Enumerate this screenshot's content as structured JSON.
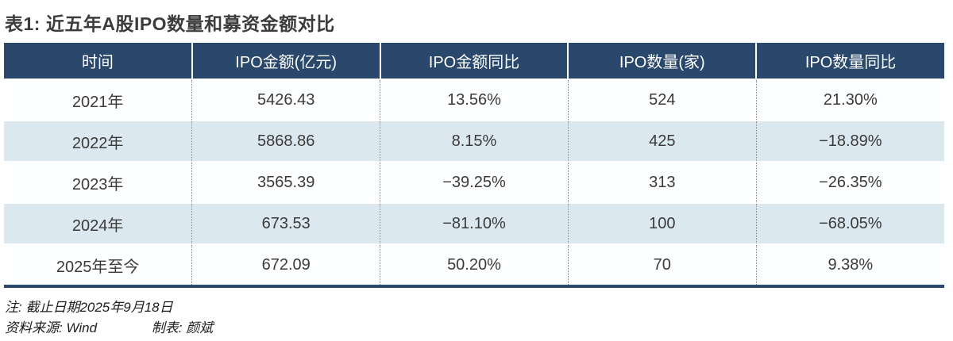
{
  "title": "表1: 近五年A股IPO数量和募资金额对比",
  "table": {
    "headers": [
      "时间",
      "IPO金额(亿元)",
      "IPO金额同比",
      "IPO数量(家)",
      "IPO数量同比"
    ],
    "rows": [
      [
        "2021年",
        "5426.43",
        "13.56%",
        "524",
        "21.30%"
      ],
      [
        "2022年",
        "5868.86",
        "8.15%",
        "425",
        "−18.89%"
      ],
      [
        "2023年",
        "3565.39",
        "−39.25%",
        "313",
        "−26.35%"
      ],
      [
        "2024年",
        "673.53",
        "−81.10%",
        "100",
        "−68.05%"
      ],
      [
        "2025年至今",
        "672.09",
        "50.20%",
        "70",
        "9.38%"
      ]
    ]
  },
  "notes": {
    "date_note": "注: 截止日期2025年9月18日",
    "source": "资料来源: Wind",
    "author": "制表: 颜斌"
  },
  "colors": {
    "header_bg": "#29486b",
    "stripe_bg": "#dce8ef",
    "bottom_border": "#29486b",
    "title_text": "#3c3c3c",
    "body_text": "#3a3a3a"
  },
  "chart_data": {
    "type": "table",
    "title": "表1: 近五年A股IPO数量和募资金额对比",
    "columns": [
      "时间",
      "IPO金额(亿元)",
      "IPO金额同比",
      "IPO数量(家)",
      "IPO数量同比"
    ],
    "rows": [
      [
        "2021年",
        5426.43,
        "13.56%",
        524,
        "21.30%"
      ],
      [
        "2022年",
        5868.86,
        "8.15%",
        425,
        "−18.89%"
      ],
      [
        "2023年",
        3565.39,
        "−39.25%",
        313,
        "−26.35%"
      ],
      [
        "2024年",
        673.53,
        "−81.10%",
        100,
        "−68.05%"
      ],
      [
        "2025年至今",
        672.09,
        "50.20%",
        70,
        "9.38%"
      ]
    ],
    "series": [
      {
        "name": "IPO金额(亿元)",
        "values": [
          5426.43,
          5868.86,
          3565.39,
          673.53,
          672.09
        ]
      },
      {
        "name": "IPO金额同比(%)",
        "values": [
          13.56,
          8.15,
          -39.25,
          -81.1,
          50.2
        ]
      },
      {
        "name": "IPO数量(家)",
        "values": [
          524,
          425,
          313,
          100,
          70
        ]
      },
      {
        "name": "IPO数量同比(%)",
        "values": [
          21.3,
          -18.89,
          -26.35,
          -68.05,
          9.38
        ]
      }
    ],
    "categories": [
      "2021年",
      "2022年",
      "2023年",
      "2024年",
      "2025年至今"
    ],
    "notes": [
      "注: 截止日期2025年9月18日",
      "资料来源: Wind",
      "制表: 颜斌"
    ]
  }
}
